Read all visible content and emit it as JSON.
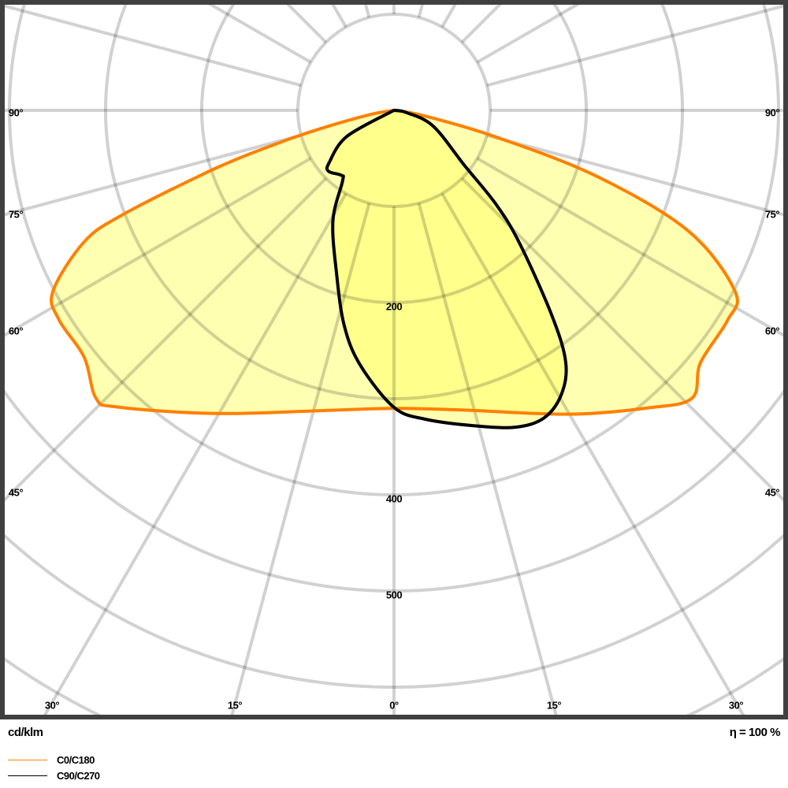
{
  "chart_data": {
    "type": "line",
    "coordinate_system": "polar",
    "unit_label": "cd/klm",
    "efficiency_label": "η = 100 %",
    "ring_values": [
      100,
      200,
      300,
      400,
      500,
      600,
      700
    ],
    "ring_labels": [
      "200",
      "400",
      "500"
    ],
    "angle_step_deg": 15,
    "angle_labels": {
      "left": [
        "90°",
        "75°",
        "60°",
        "45°"
      ],
      "right": [
        "90°",
        "75°",
        "60°",
        "45°"
      ],
      "bottom": [
        "30°",
        "15°",
        "0°",
        "15°",
        "30°"
      ]
    },
    "grid": true,
    "legend_placement": "bottom-left",
    "series": [
      {
        "name": "C0/C180",
        "color": "#ff8000",
        "points": [
          [
            -90,
            0
          ],
          [
            -80,
            25
          ],
          [
            -76,
            79
          ],
          [
            -74,
            130
          ],
          [
            -72,
            195
          ],
          [
            -69,
            301
          ],
          [
            -67,
            350
          ],
          [
            -62,
            402
          ],
          [
            -58,
            411
          ],
          [
            -51.5,
            412
          ],
          [
            -46,
            431
          ],
          [
            -43,
            422
          ],
          [
            -30.5,
            366
          ],
          [
            -14,
            322
          ],
          [
            0,
            310
          ],
          [
            13,
            320
          ],
          [
            30,
            365
          ],
          [
            40.5,
            407
          ],
          [
            46,
            431
          ],
          [
            50.5,
            413
          ],
          [
            57.7,
            410
          ],
          [
            62,
            402
          ],
          [
            67.7,
            331
          ],
          [
            72,
            221
          ],
          [
            75.4,
            108
          ],
          [
            80,
            30
          ],
          [
            90,
            0
          ]
        ]
      },
      {
        "name": "C90/C270",
        "color": "#000000",
        "points": [
          [
            -90,
            0
          ],
          [
            -61,
            56
          ],
          [
            -51,
            87
          ],
          [
            -47,
            93
          ],
          [
            -39,
            87
          ],
          [
            -36,
            91
          ],
          [
            -29,
            131
          ],
          [
            -19.4,
            180
          ],
          [
            -13,
            230
          ],
          [
            -7.6,
            267
          ],
          [
            0,
            309
          ],
          [
            5.8,
            323
          ],
          [
            14,
            338
          ],
          [
            21,
            353
          ],
          [
            26,
            356
          ],
          [
            30.5,
            343
          ],
          [
            34.3,
            317
          ],
          [
            37.6,
            269
          ],
          [
            43.3,
            191
          ],
          [
            47.3,
            145
          ],
          [
            52,
            93
          ],
          [
            68,
            44
          ],
          [
            80,
            13
          ],
          [
            90,
            0
          ]
        ]
      }
    ],
    "fill_color": "#ffff66"
  }
}
